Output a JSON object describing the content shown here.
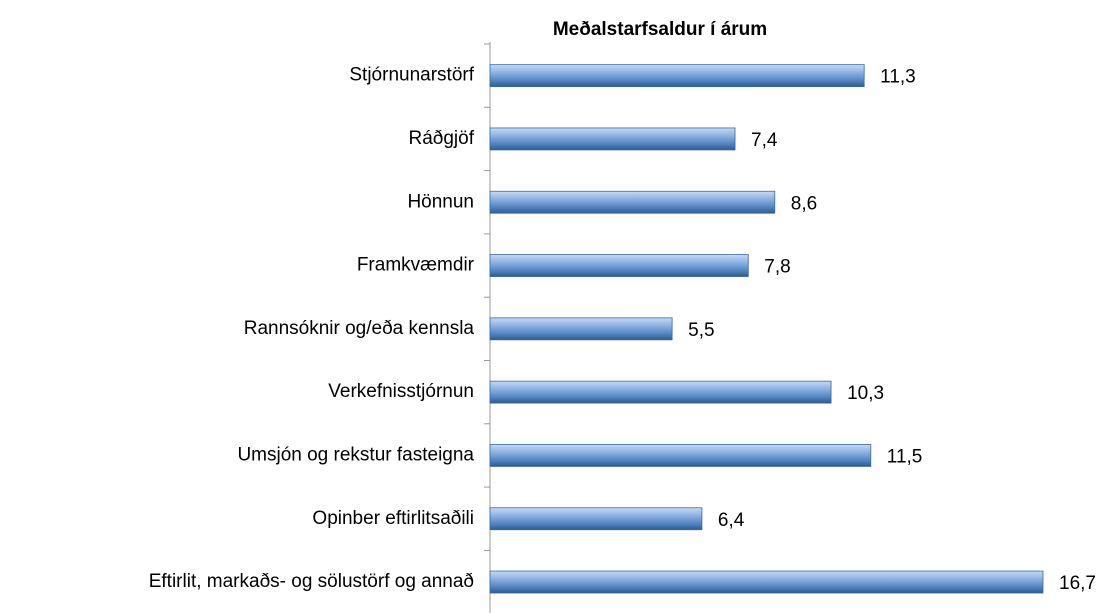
{
  "chart_data": {
    "type": "bar",
    "orientation": "horizontal",
    "title": "Meðalstarfsaldur í árum",
    "categories": [
      "Stjórnunarstörf",
      "Ráðgjöf",
      "Hönnun",
      "Framkvæmdir",
      "Rannsóknir og/eða kennsla",
      "Verkefnisstjórnun",
      "Umsjón og rekstur fasteigna",
      "Opinber eftirlitsaðili",
      "Eftirlit, markaðs- og sölustörf og annað"
    ],
    "values": [
      11.3,
      7.4,
      8.6,
      7.8,
      5.5,
      10.3,
      11.5,
      6.4,
      16.7
    ],
    "value_labels": [
      "11,3",
      "7,4",
      "8,6",
      "7,8",
      "5,5",
      "10,3",
      "11,5",
      "6,4",
      "16,7"
    ],
    "color": "#4f81bd"
  }
}
